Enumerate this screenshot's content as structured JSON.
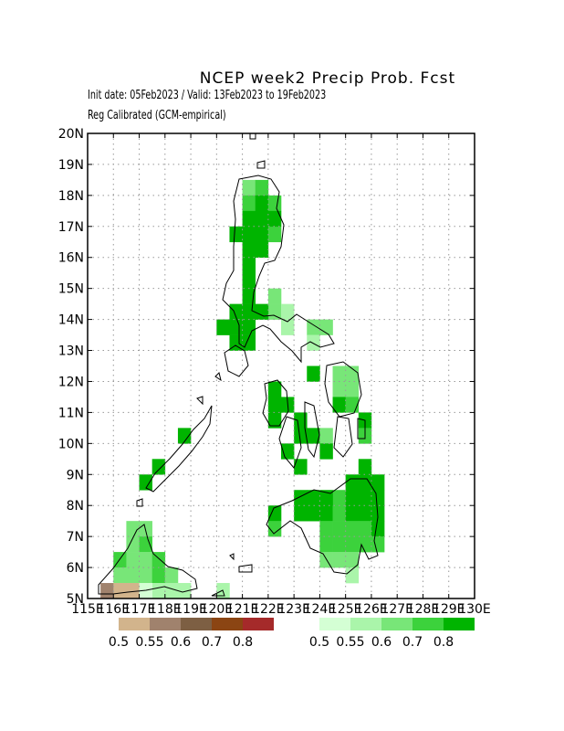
{
  "header": {
    "title": "NCEP week2 Precip Prob. Fcst",
    "init_valid": "Init date: 05Feb2023 / Valid: 13Feb2023 to 19Feb2023",
    "calibration": "Reg Calibrated (GCM-empirical)"
  },
  "axes": {
    "lat_labels": [
      "5N",
      "6N",
      "7N",
      "8N",
      "9N",
      "10N",
      "11N",
      "12N",
      "13N",
      "14N",
      "15N",
      "16N",
      "17N",
      "18N",
      "19N",
      "20N"
    ],
    "lon_labels": [
      "115E",
      "116E",
      "117E",
      "118E",
      "119E",
      "120E",
      "121E",
      "122E",
      "123E",
      "124E",
      "125E",
      "126E",
      "127E",
      "128E",
      "129E",
      "130E"
    ],
    "lon_range": [
      115,
      130
    ],
    "lat_range": [
      5,
      20
    ],
    "grid": true
  },
  "legend": {
    "below_normal": {
      "labels": [
        "0.5",
        "0.55",
        "0.6",
        "0.7",
        "0.8"
      ],
      "colors": [
        "#d2b48c",
        "#a0826d",
        "#7d5f43",
        "#8b4513",
        "#a52a2a"
      ]
    },
    "above_normal": {
      "labels": [
        "0.5",
        "0.55",
        "0.6",
        "0.7",
        "0.8"
      ],
      "colors": [
        "#d4ffd4",
        "#aaf5aa",
        "#78e678",
        "#3cd23c",
        "#00b400"
      ]
    }
  },
  "map_data": {
    "cell_size_deg": 0.5,
    "cells": [
      [
        121.0,
        18.0,
        2
      ],
      [
        121.5,
        18.0,
        3
      ],
      [
        121.0,
        17.5,
        3
      ],
      [
        121.5,
        17.5,
        4
      ],
      [
        122.0,
        17.5,
        3
      ],
      [
        120.5,
        16.5,
        4
      ],
      [
        121.0,
        16.5,
        4
      ],
      [
        121.5,
        16.5,
        4
      ],
      [
        122.0,
        16.5,
        3
      ],
      [
        121.0,
        17.0,
        4
      ],
      [
        121.5,
        17.0,
        4
      ],
      [
        122.0,
        17.0,
        4
      ],
      [
        121.0,
        16.0,
        4
      ],
      [
        121.5,
        16.0,
        4
      ],
      [
        121.0,
        15.5,
        4
      ],
      [
        121.0,
        15.0,
        4
      ],
      [
        121.0,
        14.5,
        4
      ],
      [
        122.0,
        14.5,
        2
      ],
      [
        122.0,
        14.0,
        2
      ],
      [
        120.5,
        14.0,
        4
      ],
      [
        121.0,
        14.0,
        4
      ],
      [
        121.5,
        14.0,
        4
      ],
      [
        122.5,
        14.0,
        1
      ],
      [
        120.5,
        13.5,
        4
      ],
      [
        120.0,
        13.5,
        4
      ],
      [
        121.0,
        13.5,
        4
      ],
      [
        121.0,
        13.0,
        4
      ],
      [
        120.5,
        13.0,
        4
      ],
      [
        123.5,
        13.5,
        2
      ],
      [
        124.0,
        13.5,
        2
      ],
      [
        123.5,
        13.0,
        1
      ],
      [
        122.5,
        13.5,
        1
      ],
      [
        123.5,
        12.0,
        4
      ],
      [
        124.5,
        12.0,
        2
      ],
      [
        125.0,
        12.0,
        2
      ],
      [
        124.5,
        11.5,
        2
      ],
      [
        125.0,
        11.5,
        2
      ],
      [
        122.0,
        11.5,
        4
      ],
      [
        122.0,
        11.0,
        4
      ],
      [
        122.5,
        11.0,
        4
      ],
      [
        122.0,
        10.5,
        4
      ],
      [
        124.5,
        11.0,
        4
      ],
      [
        125.0,
        11.0,
        3
      ],
      [
        123.0,
        10.5,
        4
      ],
      [
        123.0,
        10.0,
        4
      ],
      [
        123.5,
        10.0,
        4
      ],
      [
        124.0,
        10.0,
        2
      ],
      [
        122.5,
        9.5,
        4
      ],
      [
        124.0,
        9.5,
        4
      ],
      [
        123.0,
        9.0,
        4
      ],
      [
        125.5,
        10.5,
        4
      ],
      [
        125.5,
        10.0,
        3
      ],
      [
        125.5,
        9.0,
        4
      ],
      [
        125.0,
        8.5,
        4
      ],
      [
        125.5,
        8.5,
        4
      ],
      [
        126.0,
        8.5,
        4
      ],
      [
        124.5,
        8.0,
        3
      ],
      [
        125.0,
        8.0,
        4
      ],
      [
        125.5,
        8.0,
        4
      ],
      [
        126.0,
        8.0,
        4
      ],
      [
        123.0,
        8.0,
        4
      ],
      [
        123.5,
        8.0,
        4
      ],
      [
        124.0,
        8.0,
        4
      ],
      [
        123.0,
        7.5,
        4
      ],
      [
        123.5,
        7.5,
        4
      ],
      [
        124.0,
        7.5,
        4
      ],
      [
        124.5,
        7.5,
        3
      ],
      [
        125.0,
        7.5,
        4
      ],
      [
        125.5,
        7.5,
        4
      ],
      [
        126.0,
        7.5,
        4
      ],
      [
        122.0,
        7.5,
        4
      ],
      [
        122.0,
        7.0,
        3
      ],
      [
        124.0,
        7.0,
        3
      ],
      [
        124.5,
        7.0,
        3
      ],
      [
        125.0,
        7.0,
        3
      ],
      [
        125.5,
        7.0,
        3
      ],
      [
        126.0,
        7.0,
        4
      ],
      [
        124.0,
        6.5,
        3
      ],
      [
        124.5,
        6.5,
        3
      ],
      [
        125.0,
        6.5,
        3
      ],
      [
        125.5,
        6.5,
        3
      ],
      [
        126.0,
        6.5,
        3
      ],
      [
        124.0,
        6.0,
        2
      ],
      [
        124.5,
        6.0,
        2
      ],
      [
        125.0,
        6.0,
        2
      ],
      [
        125.0,
        5.5,
        1
      ],
      [
        116.5,
        7.0,
        2
      ],
      [
        117.0,
        7.0,
        2
      ],
      [
        116.5,
        6.5,
        2
      ],
      [
        117.0,
        6.5,
        3
      ],
      [
        116.0,
        6.0,
        3
      ],
      [
        116.5,
        6.0,
        2
      ],
      [
        117.0,
        6.0,
        2
      ],
      [
        116.0,
        5.5,
        2
      ],
      [
        116.5,
        5.5,
        2
      ],
      [
        117.0,
        5.5,
        2
      ],
      [
        117.5,
        5.5,
        3
      ],
      [
        117.5,
        6.0,
        3
      ],
      [
        118.0,
        5.5,
        2
      ],
      [
        118.0,
        5.0,
        1
      ],
      [
        118.5,
        5.0,
        1
      ],
      [
        117.5,
        5.0,
        1
      ],
      [
        120.0,
        5.0,
        1
      ],
      [
        115.5,
        5.0,
        -2
      ],
      [
        116.0,
        5.0,
        -1
      ],
      [
        116.5,
        5.0,
        -1
      ],
      [
        117.0,
        5.0,
        0
      ],
      [
        117.0,
        8.5,
        4
      ],
      [
        117.5,
        9.0,
        4
      ],
      [
        118.5,
        10.0,
        4
      ]
    ]
  }
}
